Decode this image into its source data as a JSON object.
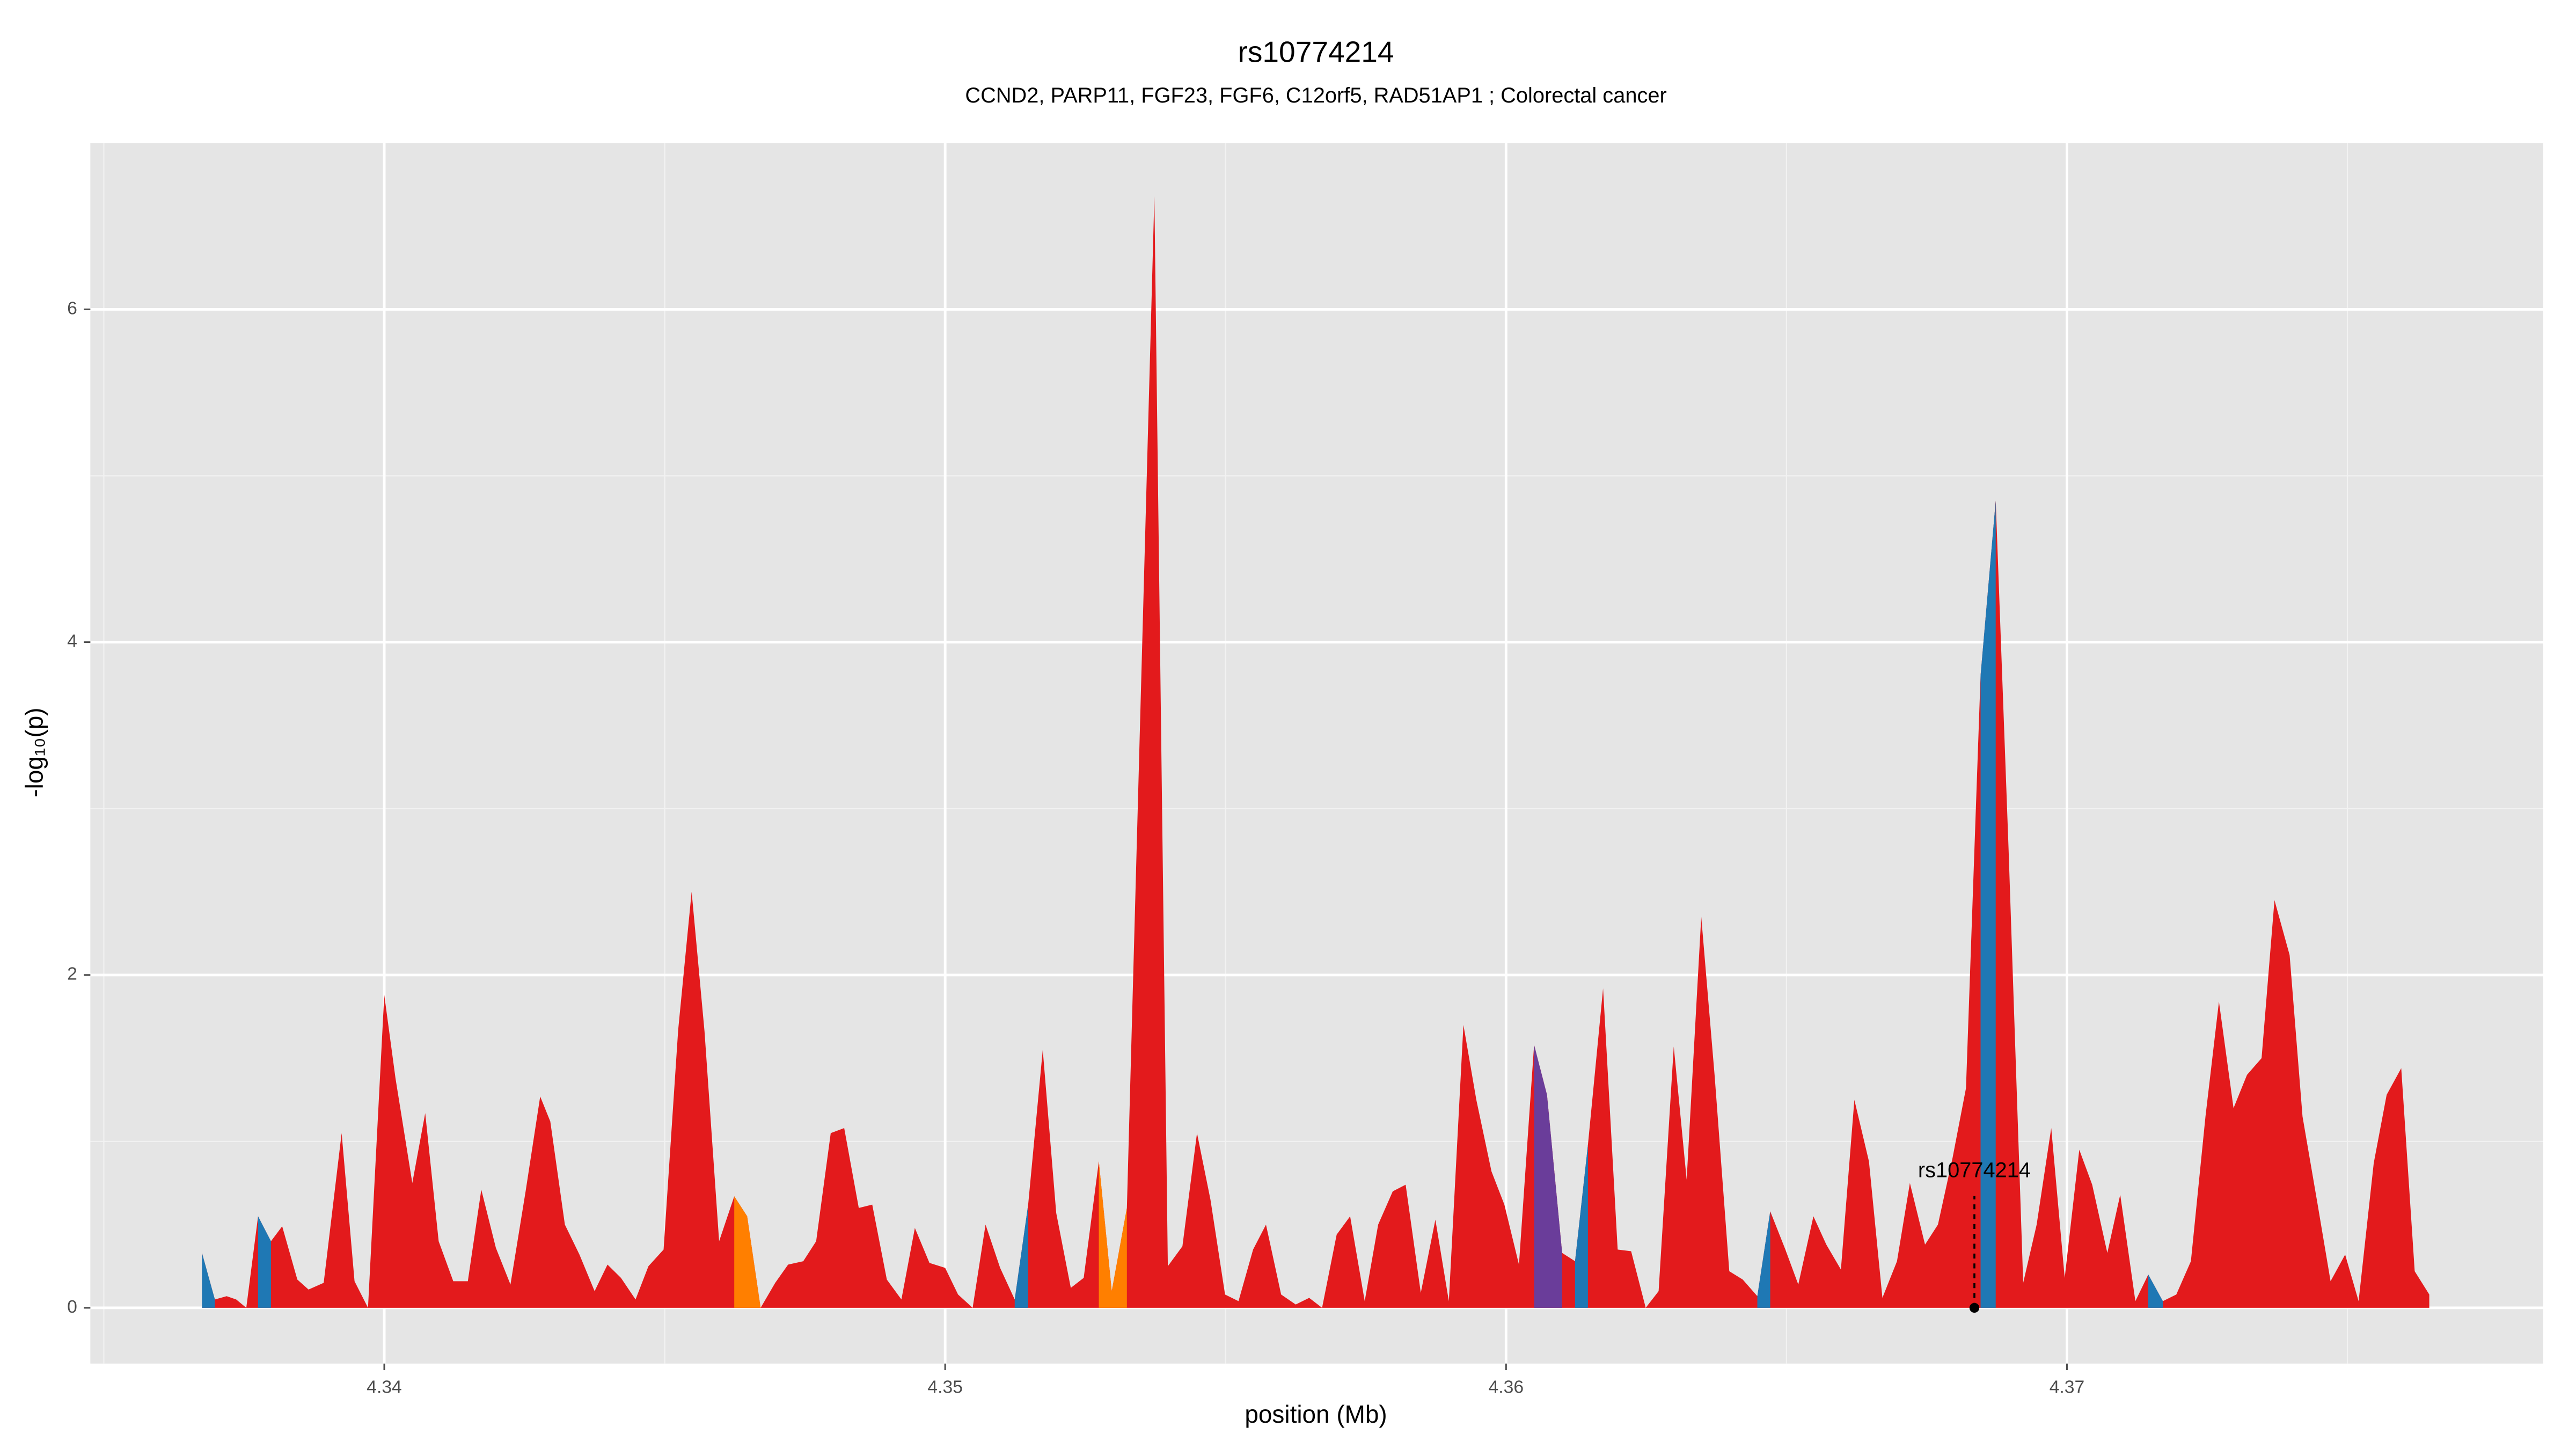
{
  "chart_data": {
    "type": "area",
    "title": "rs10774214",
    "subtitle": "CCND2, PARP11, FGF23, FGF6, C12orf5, RAD51AP1 ; Colorectal cancer",
    "x_label": "position (Mb)",
    "y_label": "-log₁₀(p)",
    "xlim": [
      4.33476,
      4.37849
    ],
    "ylim": [
      -0.335,
      7.0
    ],
    "xticks": [
      4.34,
      4.35,
      4.36,
      4.37
    ],
    "yticks": [
      0,
      2,
      4,
      6
    ],
    "xminor": [
      4.335,
      4.345,
      4.355,
      4.365,
      4.375
    ],
    "yminor": [
      1,
      3,
      5
    ],
    "grid": true,
    "series": [
      {
        "color": "#e31a1c",
        "x": [
          4.33675,
          4.33698,
          4.33719,
          4.33736,
          4.33754,
          4.33775,
          4.33798,
          4.33818,
          4.33845,
          4.33865,
          4.33892,
          4.33924,
          4.33947,
          4.33971,
          4.34,
          4.3402,
          4.3405,
          4.34073,
          4.34097,
          4.34123,
          4.34149,
          4.34173,
          4.34199,
          4.34225,
          4.34252,
          4.34278,
          4.34296,
          4.34322,
          4.34348,
          4.34375,
          4.34398,
          4.34422,
          4.34448,
          4.34471,
          4.34498,
          4.34524,
          4.34548,
          4.34571,
          4.34597,
          4.34624,
          4.34647,
          4.34671,
          4.34697,
          4.3472,
          4.34747,
          4.3477,
          4.34796,
          4.3482,
          4.34846,
          4.3487,
          4.34896,
          4.34922,
          4.34946,
          4.34972,
          4.35,
          4.35023,
          4.35049,
          4.35072,
          4.35098,
          4.35124,
          4.35148,
          4.35174,
          4.35198,
          4.35224,
          4.35247,
          4.35274,
          4.35297,
          4.35324,
          4.35373,
          4.35397,
          4.35423,
          4.35449,
          4.35473,
          4.35499,
          4.35523,
          4.35549,
          4.35572,
          4.35599,
          4.35625,
          4.35649,
          4.35672,
          4.35698,
          4.35722,
          4.35748,
          4.35772,
          4.35798,
          4.35821,
          4.35848,
          4.35874,
          4.35898,
          4.35924,
          4.35947,
          4.35974,
          4.35997,
          4.36023,
          4.3605,
          4.36073,
          4.361,
          4.36123,
          4.36146,
          4.36173,
          4.36199,
          4.36223,
          4.36249,
          4.36272,
          4.36299,
          4.36322,
          4.36348,
          4.36372,
          4.36398,
          4.36422,
          4.36448,
          4.36471,
          4.36498,
          4.36521,
          4.36548,
          4.36571,
          4.36597,
          4.36621,
          4.36647,
          4.36671,
          4.36697,
          4.3672,
          4.36747,
          4.3677,
          4.36796,
          4.3682,
          4.36846,
          4.36873,
          4.36896,
          4.36922,
          4.36946,
          4.36972,
          4.36996,
          4.37022,
          4.37045,
          4.37072,
          4.37095,
          4.37122,
          4.37145,
          4.37171,
          4.37195,
          4.37221,
          4.37247,
          4.37271,
          4.37297,
          4.37321,
          4.37347,
          4.3737,
          4.37397,
          4.3742,
          4.37447,
          4.3747,
          4.37496,
          4.3752,
          4.37547,
          4.3757,
          4.37596,
          4.3762,
          4.37646
        ],
        "values": [
          0.33,
          0.05,
          0.07,
          0.05,
          0,
          0.55,
          0.4,
          0.49,
          0.17,
          0.11,
          0.15,
          1.05,
          0.16,
          0,
          1.88,
          1.38,
          0.75,
          1.17,
          0.4,
          0.16,
          0.16,
          0.71,
          0.36,
          0.14,
          0.7,
          1.27,
          1.12,
          0.5,
          0.32,
          0.1,
          0.26,
          0.18,
          0.05,
          0.25,
          0.35,
          1.67,
          2.5,
          1.66,
          0.4,
          0.67,
          0.55,
          0,
          0.15,
          0.26,
          0.28,
          0.4,
          1.05,
          1.08,
          0.6,
          0.62,
          0.17,
          0.05,
          0.48,
          0.27,
          0.24,
          0.08,
          0,
          0.5,
          0.24,
          0.05,
          0.62,
          1.55,
          0.57,
          0.12,
          0.18,
          0.88,
          0.1,
          0.6,
          6.68,
          0.25,
          0.37,
          1.05,
          0.65,
          0.08,
          0.04,
          0.35,
          0.5,
          0.08,
          0.02,
          0.06,
          0,
          0.44,
          0.55,
          0.04,
          0.5,
          0.7,
          0.74,
          0.09,
          0.53,
          0.04,
          1.7,
          1.25,
          0.82,
          0.62,
          0.26,
          1.58,
          1.28,
          0.33,
          0.28,
          0.98,
          1.92,
          0.35,
          0.34,
          0,
          0.1,
          1.57,
          0.77,
          2.35,
          1.39,
          0.22,
          0.17,
          0.07,
          0.58,
          0.35,
          0.14,
          0.55,
          0.38,
          0.23,
          1.25,
          0.88,
          0.06,
          0.28,
          0.75,
          0.38,
          0.5,
          0.9,
          1.32,
          3.8,
          4.85,
          2.75,
          0.15,
          0.5,
          1.08,
          0.18,
          0.95,
          0.74,
          0.33,
          0.68,
          0.04,
          0.2,
          0.04,
          0.08,
          0.28,
          1.15,
          1.84,
          1.2,
          1.4,
          1.5,
          2.45,
          2.12,
          1.15,
          0.62,
          0.16,
          0.32,
          0.04,
          0.87,
          1.28,
          1.44,
          0.22,
          0.08
        ]
      },
      {
        "color": "#1f78b4",
        "x": [
          4.33675,
          4.33698,
          null,
          4.33775,
          4.33798,
          null,
          4.35124,
          4.35148,
          null,
          4.36123,
          4.36146,
          null,
          4.36448,
          4.36471,
          null,
          4.36846,
          4.36873,
          null,
          4.37145,
          4.37171
        ],
        "values": [
          0.33,
          0.05,
          null,
          0.55,
          0.4,
          null,
          0.05,
          0.62,
          null,
          0.28,
          0.98,
          null,
          0.07,
          0.58,
          null,
          3.8,
          4.85,
          null,
          0.2,
          0.04
        ]
      },
      {
        "color": "#ff7f00",
        "x": [
          4.34624,
          4.34647,
          4.34671,
          null,
          4.35274,
          4.35297,
          4.35324
        ],
        "values": [
          0.67,
          0.55,
          0,
          null,
          0.88,
          0.1,
          0.6
        ]
      },
      {
        "color": "#6a3d9a",
        "x": [
          4.3605,
          4.36073,
          4.361
        ],
        "values": [
          1.58,
          1.28,
          0.33
        ]
      }
    ],
    "annotation": {
      "label": "rs10774214",
      "x": 4.36835,
      "y": 0
    }
  }
}
